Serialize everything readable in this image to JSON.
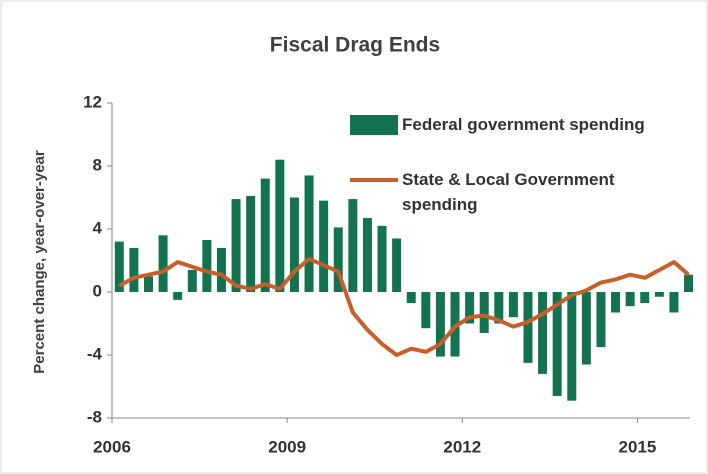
{
  "chart_data": {
    "type": "bar-line",
    "title": "Fiscal Drag Ends",
    "y_label": "Percent change, year-over-year",
    "x": [
      2006,
      2006.25,
      2006.5,
      2006.75,
      2007,
      2007.25,
      2007.5,
      2007.75,
      2008,
      2008.25,
      2008.5,
      2008.75,
      2009,
      2009.25,
      2009.5,
      2009.75,
      2010,
      2010.25,
      2010.5,
      2010.75,
      2011,
      2011.25,
      2011.5,
      2011.75,
      2012,
      2012.25,
      2012.5,
      2012.75,
      2013,
      2013.25,
      2013.5,
      2013.75,
      2014,
      2014.25,
      2014.5,
      2014.75,
      2015,
      2015.25,
      2015.5,
      2015.75
    ],
    "series": [
      {
        "name": "Federal government spending",
        "kind": "bar",
        "color": "#137350",
        "values": [
          3.2,
          2.8,
          1.0,
          3.6,
          -0.5,
          1.4,
          3.3,
          2.8,
          5.9,
          6.1,
          7.2,
          8.4,
          6.0,
          7.4,
          5.8,
          4.1,
          5.9,
          4.7,
          4.2,
          3.4,
          -0.7,
          -2.3,
          -4.1,
          -4.1,
          -2.0,
          -2.6,
          -2.0,
          -1.6,
          -4.5,
          -5.2,
          -6.6,
          -6.9,
          -4.6,
          -3.5,
          -1.3,
          -0.9,
          -0.7,
          -0.3,
          -1.3,
          1.1
        ]
      },
      {
        "name": "State & Local Government spending",
        "kind": "line",
        "color": "#c75f2a",
        "values": [
          0.4,
          0.9,
          1.1,
          1.3,
          1.9,
          1.6,
          1.3,
          1.1,
          0.4,
          0.2,
          0.5,
          0.2,
          1.3,
          2.1,
          1.7,
          1.3,
          -1.3,
          -2.4,
          -3.3,
          -4.0,
          -3.6,
          -3.8,
          -3.3,
          -2.2,
          -1.6,
          -1.5,
          -1.8,
          -2.2,
          -1.9,
          -1.4,
          -0.8,
          -0.2,
          0.1,
          0.6,
          0.8,
          1.1,
          0.9,
          1.4,
          1.9,
          1.1
        ]
      }
    ],
    "xlim": [
      2006,
      2015.9
    ],
    "xticks": [
      2006,
      2009,
      2012,
      2015
    ],
    "ylim": [
      -8,
      12
    ],
    "yticks": [
      -8,
      -4,
      0,
      4,
      8,
      12
    ]
  }
}
